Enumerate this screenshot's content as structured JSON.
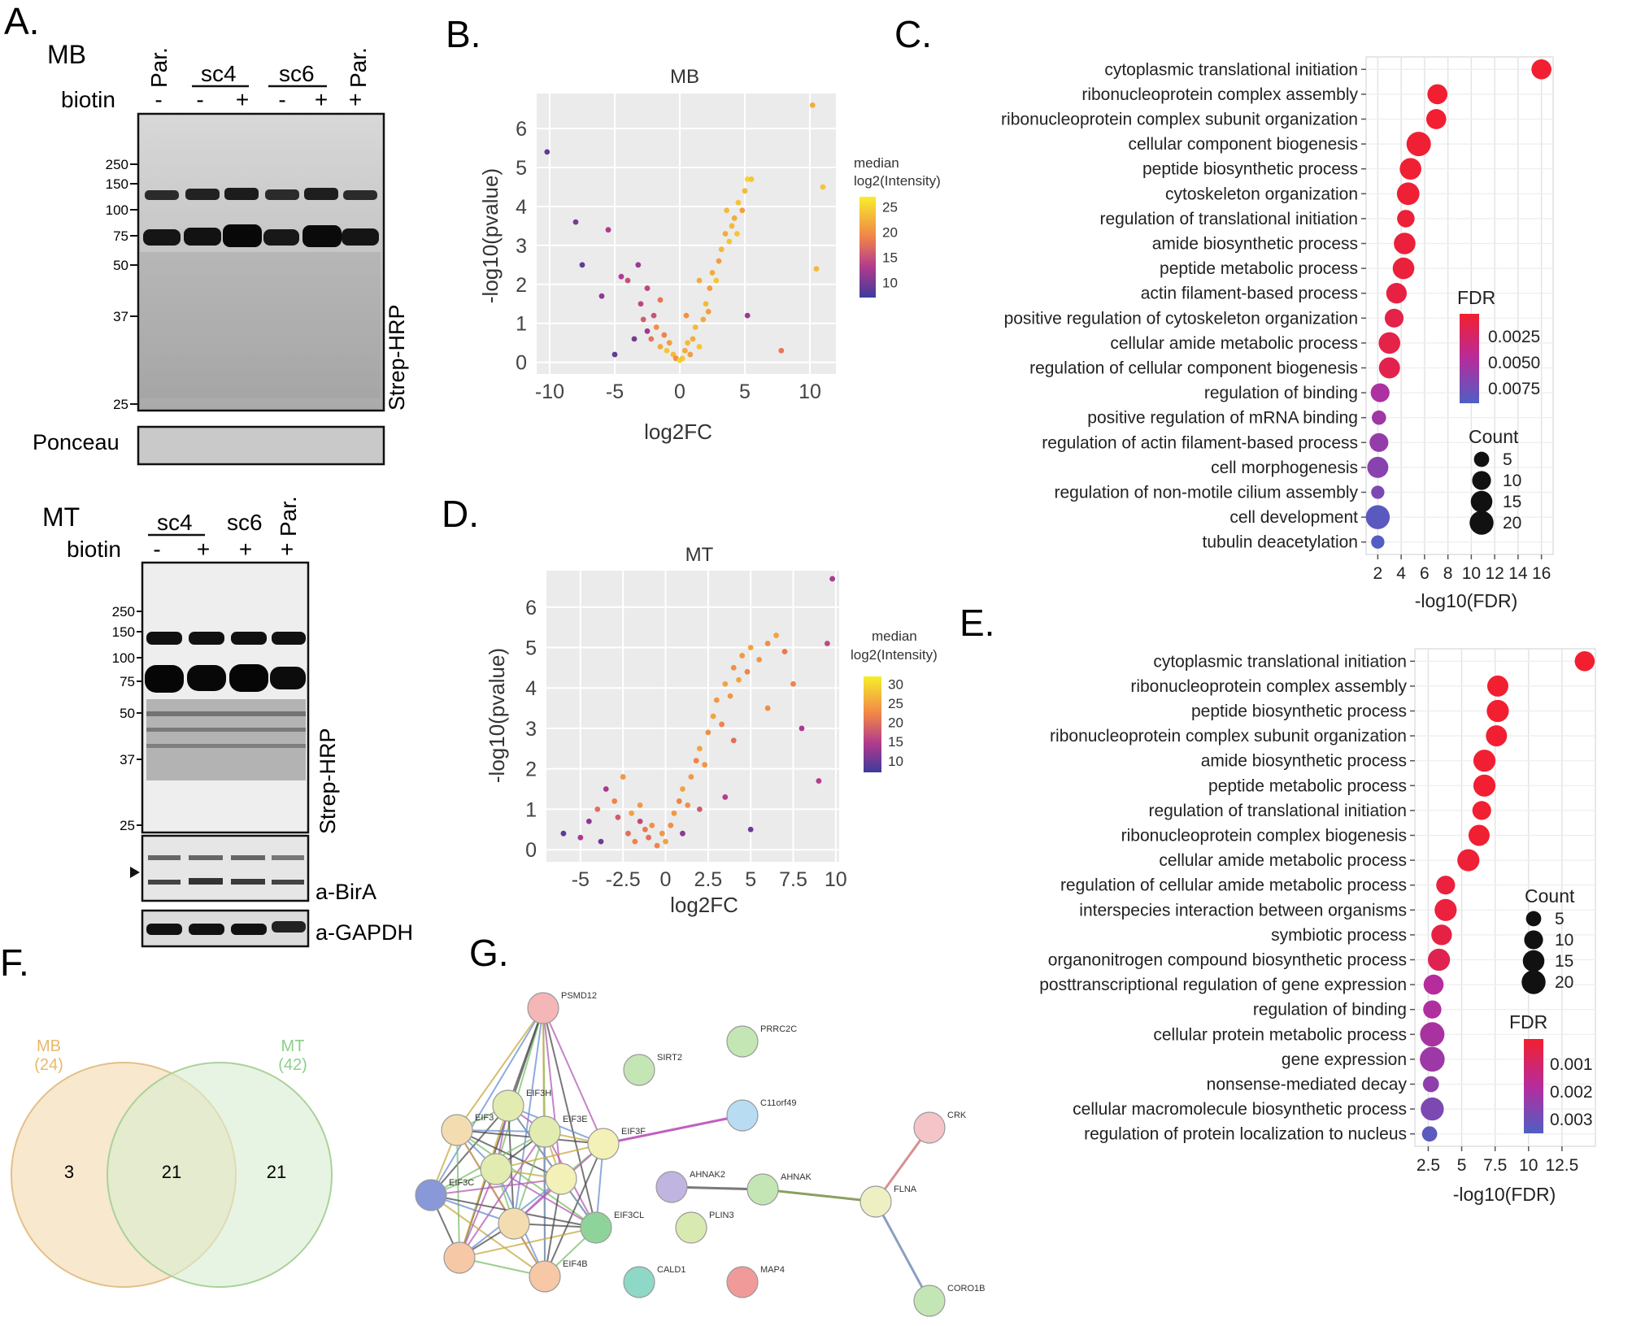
{
  "panel_letters": {
    "A": "A.",
    "B": "B.",
    "C": "C.",
    "D": "D.",
    "E": "E.",
    "F": "F.",
    "G": "G."
  },
  "panelA": {
    "mb": {
      "title": "MB",
      "biotin_label": "biotin",
      "lanes": [
        {
          "group": "Par.",
          "biotin": "-"
        },
        {
          "group": "sc4",
          "biotin": "-"
        },
        {
          "group": "sc4",
          "biotin": "+"
        },
        {
          "group": "sc6",
          "biotin": "-"
        },
        {
          "group": "sc6",
          "biotin": "+"
        },
        {
          "group": "Par.",
          "biotin": "+"
        }
      ],
      "markers": [
        "250",
        "150",
        "100",
        "75",
        "50",
        "37",
        "25"
      ],
      "blot_label": "Strep-HRP",
      "ponceau_label": "Ponceau"
    },
    "mt": {
      "title": "MT",
      "biotin_label": "biotin",
      "lanes": [
        {
          "group": "sc4",
          "biotin": "-"
        },
        {
          "group": "sc4",
          "biotin": "+"
        },
        {
          "group": "sc6",
          "biotin": "+"
        },
        {
          "group": "Par.",
          "biotin": "+"
        }
      ],
      "markers": [
        "250",
        "150",
        "100",
        "75",
        "50",
        "37",
        "25"
      ],
      "blot_label": "Strep-HRP",
      "birA_label": "a-BirA",
      "gapdh_label": "a-GAPDH"
    }
  },
  "chart_data": [
    {
      "panel": "B",
      "type": "scatter",
      "title": "MB",
      "xlabel": "log2FC",
      "ylabel": "-log10(pvalue)",
      "xlim": [
        -11,
        12
      ],
      "ylim": [
        -0.3,
        6.9
      ],
      "xticks": [
        -10,
        -5,
        0,
        5,
        10
      ],
      "yticks": [
        0,
        1,
        2,
        3,
        4,
        5,
        6
      ],
      "color_legend": {
        "title": "median log2(Intensity)",
        "ticks": [
          25,
          20,
          15,
          10
        ],
        "range": [
          7,
          27
        ]
      },
      "points": [
        [
          -10.2,
          5.4,
          9
        ],
        [
          -8,
          3.6,
          10
        ],
        [
          -7.5,
          2.5,
          9
        ],
        [
          -5.5,
          3.4,
          13
        ],
        [
          -5,
          0.2,
          9
        ],
        [
          -6,
          1.7,
          11
        ],
        [
          -4.5,
          2.2,
          13
        ],
        [
          -4,
          2.1,
          15
        ],
        [
          -3.2,
          2.5,
          12
        ],
        [
          -3,
          1.5,
          14
        ],
        [
          -2.8,
          1.1,
          16
        ],
        [
          -2.5,
          0.8,
          12
        ],
        [
          -2.2,
          0.6,
          18
        ],
        [
          -2,
          1.2,
          15
        ],
        [
          -1.8,
          0.9,
          20
        ],
        [
          -1.5,
          0.4,
          22
        ],
        [
          -1.2,
          0.7,
          19
        ],
        [
          -1,
          0.3,
          24
        ],
        [
          -0.8,
          0.5,
          21
        ],
        [
          -0.5,
          0.2,
          23
        ],
        [
          -0.3,
          0.1,
          20
        ],
        [
          0,
          0.05,
          25
        ],
        [
          0.2,
          0.1,
          24
        ],
        [
          0.4,
          0.3,
          22
        ],
        [
          0.6,
          0.5,
          23
        ],
        [
          0.8,
          0.2,
          21
        ],
        [
          1,
          0.6,
          22
        ],
        [
          1.2,
          0.9,
          23
        ],
        [
          1.5,
          0.4,
          24
        ],
        [
          1.8,
          1.1,
          22
        ],
        [
          2,
          1.5,
          23
        ],
        [
          2.3,
          1.9,
          21
        ],
        [
          2.5,
          2.3,
          22
        ],
        [
          2.8,
          2.1,
          24
        ],
        [
          3,
          2.6,
          21
        ],
        [
          3.2,
          2.9,
          23
        ],
        [
          3.5,
          3.3,
          22
        ],
        [
          3.8,
          3.1,
          24
        ],
        [
          4,
          3.5,
          23
        ],
        [
          4.2,
          3.7,
          22
        ],
        [
          4.5,
          4.1,
          24
        ],
        [
          4.8,
          3.9,
          21
        ],
        [
          5,
          4.4,
          23
        ],
        [
          5.2,
          4.7,
          25
        ],
        [
          5.5,
          4.7,
          24
        ],
        [
          10.2,
          6.6,
          22
        ],
        [
          11,
          4.5,
          24
        ],
        [
          10.5,
          2.4,
          23
        ],
        [
          7.8,
          0.3,
          18
        ],
        [
          5.2,
          1.2,
          12
        ],
        [
          -2.5,
          1.9,
          14
        ],
        [
          -3.5,
          0.6,
          10
        ],
        [
          -1.5,
          1.6,
          18
        ],
        [
          0.5,
          1.2,
          20
        ],
        [
          1.5,
          2.1,
          22
        ],
        [
          2.2,
          1.3,
          21
        ],
        [
          3.6,
          3.9,
          23
        ],
        [
          4.4,
          3.3,
          24
        ]
      ]
    },
    {
      "panel": "D",
      "type": "scatter",
      "title": "MT",
      "xlabel": "log2FC",
      "ylabel": "-log10(pvalue)",
      "xlim": [
        -7,
        10.2
      ],
      "ylim": [
        -0.3,
        6.9
      ],
      "xticks": [
        -5,
        -2.5,
        0,
        2.5,
        5,
        7.5,
        10
      ],
      "yticks": [
        0,
        1,
        2,
        3,
        4,
        5,
        6
      ],
      "color_legend": {
        "title": "median log2(Intensity)",
        "ticks": [
          30,
          25,
          20,
          15,
          10
        ],
        "range": [
          7,
          32
        ]
      },
      "points": [
        [
          -6,
          0.4,
          9
        ],
        [
          -5,
          0.3,
          14
        ],
        [
          -4.5,
          0.7,
          12
        ],
        [
          -4,
          1,
          20
        ],
        [
          -3.8,
          0.2,
          10
        ],
        [
          -3.5,
          1.5,
          14
        ],
        [
          -3,
          1.2,
          22
        ],
        [
          -2.8,
          0.8,
          18
        ],
        [
          -2.5,
          1.8,
          24
        ],
        [
          -2.2,
          0.4,
          20
        ],
        [
          -2,
          0.9,
          25
        ],
        [
          -1.8,
          0.2,
          22
        ],
        [
          -1.5,
          1.1,
          24
        ],
        [
          -1.2,
          0.5,
          21
        ],
        [
          -1,
          0.3,
          20
        ],
        [
          -0.8,
          0.6,
          23
        ],
        [
          -0.5,
          0.1,
          22
        ],
        [
          -0.2,
          0.4,
          24
        ],
        [
          0,
          0.2,
          25
        ],
        [
          0.3,
          0.6,
          23
        ],
        [
          0.5,
          0.9,
          24
        ],
        [
          0.8,
          1.2,
          22
        ],
        [
          1,
          1.5,
          25
        ],
        [
          1.3,
          1.1,
          23
        ],
        [
          1.5,
          1.8,
          24
        ],
        [
          1.8,
          2.2,
          22
        ],
        [
          2,
          2.5,
          25
        ],
        [
          2.3,
          2.1,
          24
        ],
        [
          2.5,
          2.9,
          23
        ],
        [
          2.8,
          3.3,
          25
        ],
        [
          3,
          3.7,
          24
        ],
        [
          3.3,
          3.1,
          22
        ],
        [
          3.5,
          4.1,
          25
        ],
        [
          3.8,
          3.8,
          24
        ],
        [
          4,
          4.5,
          23
        ],
        [
          4.3,
          4.2,
          25
        ],
        [
          4.5,
          4.8,
          24
        ],
        [
          4.8,
          4.4,
          22
        ],
        [
          5,
          5.0,
          25
        ],
        [
          5.5,
          4.7,
          24
        ],
        [
          6,
          5.1,
          23
        ],
        [
          6.5,
          5.3,
          25
        ],
        [
          7,
          4.9,
          21
        ],
        [
          7.5,
          4.1,
          22
        ],
        [
          8,
          3.0,
          14
        ],
        [
          9,
          1.7,
          15
        ],
        [
          9.5,
          5.1,
          16
        ],
        [
          9.8,
          6.7,
          14
        ],
        [
          5,
          0.5,
          10
        ],
        [
          3.5,
          1.3,
          15
        ],
        [
          2,
          1.0,
          18
        ],
        [
          4,
          2.7,
          20
        ],
        [
          6,
          3.5,
          23
        ],
        [
          1,
          0.4,
          12
        ],
        [
          -1.5,
          0.7,
          16
        ]
      ]
    },
    {
      "panel": "C",
      "type": "dot",
      "xlabel": "-log10(FDR)",
      "xlim": [
        1,
        17
      ],
      "xticks": [
        "2",
        "4",
        "6",
        "8",
        "10",
        "12",
        "14",
        "16"
      ],
      "xtick_values": [
        2,
        4,
        6,
        8,
        10,
        12,
        14,
        16
      ],
      "fdr_legend": {
        "title": "FDR",
        "ticks": [
          "0.0025",
          "0.0050",
          "0.0075"
        ]
      },
      "count_legend": {
        "title": "Count",
        "ticks": [
          "5",
          "10",
          "15",
          "20"
        ],
        "values": [
          5,
          10,
          15,
          20
        ]
      },
      "terms": [
        {
          "label": "cytoplasmic translational initiation",
          "value": 16,
          "count": 12,
          "fdr": 0.0001
        },
        {
          "label": "ribonucleoprotein complex assembly",
          "value": 7.1,
          "count": 12,
          "fdr": 0.0001
        },
        {
          "label": "ribonucleoprotein complex subunit organization",
          "value": 7,
          "count": 12,
          "fdr": 0.0001
        },
        {
          "label": "cellular component biogenesis",
          "value": 5.5,
          "count": 21,
          "fdr": 0.0002
        },
        {
          "label": "peptide biosynthetic process",
          "value": 4.8,
          "count": 15,
          "fdr": 0.0002
        },
        {
          "label": "cytoskeleton organization",
          "value": 4.6,
          "count": 17,
          "fdr": 0.0003
        },
        {
          "label": "regulation of translational initiation",
          "value": 4.4,
          "count": 8,
          "fdr": 0.0004
        },
        {
          "label": "amide biosynthetic process",
          "value": 4.3,
          "count": 15,
          "fdr": 0.0005
        },
        {
          "label": "peptide metabolic process",
          "value": 4.2,
          "count": 15,
          "fdr": 0.0005
        },
        {
          "label": "actin filament-based process",
          "value": 3.6,
          "count": 13,
          "fdr": 0.0008
        },
        {
          "label": "positive regulation of cytoskeleton organization",
          "value": 3.4,
          "count": 10,
          "fdr": 0.001
        },
        {
          "label": "cellular amide metabolic process",
          "value": 3,
          "count": 15,
          "fdr": 0.001
        },
        {
          "label": "regulation of cellular component biogenesis",
          "value": 3,
          "count": 14,
          "fdr": 0.0012
        },
        {
          "label": "regulation of binding",
          "value": 2.2,
          "count": 10,
          "fdr": 0.005
        },
        {
          "label": "positive regulation of mRNA binding",
          "value": 2.1,
          "count": 4,
          "fdr": 0.0055
        },
        {
          "label": "regulation of actin filament-based process",
          "value": 2.1,
          "count": 10,
          "fdr": 0.006
        },
        {
          "label": "cell morphogenesis",
          "value": 2.0,
          "count": 14,
          "fdr": 0.0065
        },
        {
          "label": "regulation of non-motile cilium assembly",
          "value": 2.0,
          "count": 3,
          "fdr": 0.007
        },
        {
          "label": "cell development",
          "value": 2.0,
          "count": 20,
          "fdr": 0.0085
        },
        {
          "label": "tubulin deacetylation",
          "value": 2.0,
          "count": 3,
          "fdr": 0.0088
        }
      ]
    },
    {
      "panel": "E",
      "type": "dot",
      "xlabel": "-log10(FDR)",
      "xlim": [
        1.5,
        15
      ],
      "xticks": [
        "2.5",
        "5",
        "7.5",
        "10",
        "12.5"
      ],
      "xtick_values": [
        2.5,
        5,
        7.5,
        10,
        12.5
      ],
      "fdr_legend": {
        "title": "FDR",
        "ticks": [
          "0.001",
          "0.002",
          "0.003"
        ]
      },
      "count_legend": {
        "title": "Count",
        "ticks": [
          "5",
          "10",
          "15",
          "20"
        ],
        "values": [
          5,
          10,
          15,
          20
        ]
      },
      "terms": [
        {
          "label": "cytoplasmic translational initiation",
          "value": 14.2,
          "count": 12,
          "fdr": 2e-05
        },
        {
          "label": "ribonucleoprotein complex assembly",
          "value": 7.7,
          "count": 14,
          "fdr": 2e-05
        },
        {
          "label": "peptide biosynthetic process",
          "value": 7.7,
          "count": 16,
          "fdr": 2e-05
        },
        {
          "label": "ribonucleoprotein complex subunit organization",
          "value": 7.6,
          "count": 14,
          "fdr": 3e-05
        },
        {
          "label": "amide biosynthetic process",
          "value": 6.7,
          "count": 16,
          "fdr": 3e-05
        },
        {
          "label": "peptide metabolic process",
          "value": 6.7,
          "count": 16,
          "fdr": 3e-05
        },
        {
          "label": "regulation of translational initiation",
          "value": 6.5,
          "count": 10,
          "fdr": 4e-05
        },
        {
          "label": "ribonucleoprotein complex biogenesis",
          "value": 6.3,
          "count": 14,
          "fdr": 5e-05
        },
        {
          "label": "cellular amide metabolic process",
          "value": 5.5,
          "count": 16,
          "fdr": 0.0001
        },
        {
          "label": "regulation of cellular amide metabolic process",
          "value": 3.8,
          "count": 10,
          "fdr": 0.0002
        },
        {
          "label": "interspecies interaction between organisms",
          "value": 3.8,
          "count": 16,
          "fdr": 0.0002
        },
        {
          "label": "symbiotic process",
          "value": 3.5,
          "count": 13,
          "fdr": 0.0003
        },
        {
          "label": "organonitrogen compound biosynthetic process",
          "value": 3.3,
          "count": 16,
          "fdr": 0.0005
        },
        {
          "label": "posttranscriptional regulation of gene expression",
          "value": 2.9,
          "count": 12,
          "fdr": 0.0016
        },
        {
          "label": "regulation of binding",
          "value": 2.8,
          "count": 9,
          "fdr": 0.0017
        },
        {
          "label": "cellular protein metabolic process",
          "value": 2.8,
          "count": 21,
          "fdr": 0.0018
        },
        {
          "label": "gene expression",
          "value": 2.8,
          "count": 22,
          "fdr": 0.002
        },
        {
          "label": "nonsense-mediated decay",
          "value": 2.7,
          "count": 6,
          "fdr": 0.0022
        },
        {
          "label": "cellular macromolecule biosynthetic process",
          "value": 2.8,
          "count": 18,
          "fdr": 0.0025
        },
        {
          "label": "regulation of protein localization to nucleus",
          "value": 2.6,
          "count": 5,
          "fdr": 0.003
        }
      ]
    }
  ],
  "panelF": {
    "set1": {
      "name": "MB",
      "count": "(24)",
      "color": "#e8b86a"
    },
    "set2": {
      "name": "MT",
      "count": "(42)",
      "color": "#8ccf8c"
    },
    "only1": "3",
    "both": "21",
    "only2": "21"
  },
  "panelG": {
    "nodes": [
      {
        "name": "PSMD12",
        "color": "#f4b6b6"
      },
      {
        "name": "PRRC2C",
        "color": "#c4e6b4"
      },
      {
        "name": "SIRT2",
        "color": "#c4e6b4"
      },
      {
        "name": "C11orf49",
        "color": "#b8dcf2"
      },
      {
        "name": "EIF3H",
        "color": "#e2ecb0"
      },
      {
        "name": "EIF3",
        "color": "#f3ddb0"
      },
      {
        "name": "EIF3E",
        "color": "#e2ecb0"
      },
      {
        "name": "EIF3F",
        "color": "#f3f0b8"
      },
      {
        "name": "EIF3C",
        "color": "#8898d8"
      },
      {
        "name": "EIF3CL",
        "color": "#8ed49a"
      },
      {
        "name": "EIF4B",
        "color": "#f6c8a6"
      },
      {
        "name": "AHNAK2",
        "color": "#c0b4e0"
      },
      {
        "name": "AHNAK",
        "color": "#c4e6b4"
      },
      {
        "name": "PLIN3",
        "color": "#d8eab0"
      },
      {
        "name": "CALD1",
        "color": "#8ed8c8"
      },
      {
        "name": "MAP4",
        "color": "#f09a9a"
      },
      {
        "name": "FLNA",
        "color": "#eef0c4"
      },
      {
        "name": "CRK",
        "color": "#f4c4c8"
      },
      {
        "name": "CORO1B",
        "color": "#c4e6b4"
      }
    ]
  }
}
